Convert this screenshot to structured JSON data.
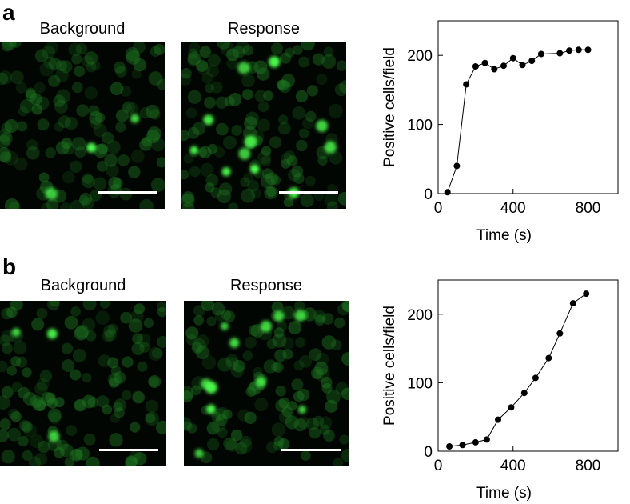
{
  "figure": {
    "panels": [
      {
        "letter": "a",
        "background_label": "Background",
        "response_label": "Response",
        "chart_data": {
          "type": "line",
          "xlabel": "Time (s)",
          "ylabel": "Positive cells/field",
          "xlim": [
            0,
            960
          ],
          "ylim": [
            0,
            250
          ],
          "xticks": [
            0,
            400,
            800
          ],
          "yticks": [
            0,
            100,
            200
          ],
          "grid": false,
          "series": [
            {
              "x": [
                50,
                100,
                150,
                200,
                250,
                300,
                350,
                400,
                450,
                500,
                550,
                650,
                700,
                750,
                800
              ],
              "y": [
                2,
                40,
                158,
                184,
                189,
                180,
                185,
                196,
                186,
                192,
                202,
                203,
                207,
                208,
                208
              ]
            }
          ]
        }
      },
      {
        "letter": "b",
        "background_label": "Background",
        "response_label": "Response",
        "chart_data": {
          "type": "line",
          "xlabel": "Time (s)",
          "ylabel": "Positive cells/field",
          "xlim": [
            0,
            960
          ],
          "ylim": [
            0,
            250
          ],
          "xticks": [
            0,
            400,
            800
          ],
          "yticks": [
            0,
            100,
            200
          ],
          "grid": false,
          "series": [
            {
              "x": [
                60,
                130,
                200,
                260,
                320,
                390,
                460,
                520,
                590,
                650,
                720,
                790
              ],
              "y": [
                7,
                9,
                13,
                17,
                46,
                64,
                85,
                107,
                136,
                172,
                216,
                230
              ]
            }
          ]
        }
      }
    ],
    "colors": {
      "cell_dim": "#1f7a22",
      "cell_bright": "#4dff4d",
      "scale_bar": "#ffffff",
      "line": "#000000"
    }
  }
}
